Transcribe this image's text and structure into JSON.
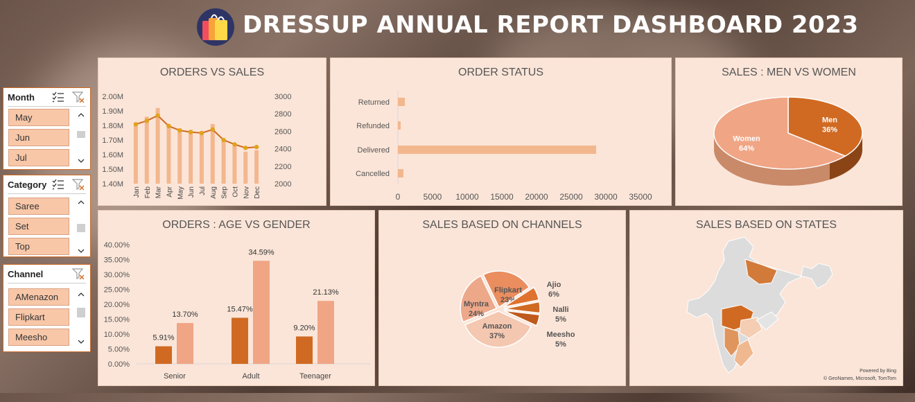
{
  "header": {
    "title": "DRESSUP ANNUAL REPORT DASHBOARD 2023"
  },
  "slicers": {
    "month": {
      "header": "Month",
      "items": [
        "May",
        "Jun",
        "Jul"
      ]
    },
    "category": {
      "header": "Category",
      "items": [
        "Saree",
        "Set",
        "Top"
      ]
    },
    "channel": {
      "header": "Channel",
      "items": [
        "AMenazon",
        "Flipkart",
        "Meesho"
      ]
    }
  },
  "colors": {
    "dark": "#d06a22",
    "light": "#f0a585",
    "bar": "#f3b78e",
    "panel": "#fbe5d8"
  },
  "chart_data": [
    {
      "id": "orders_vs_sales",
      "type": "bar",
      "title": "ORDERS VS SALES",
      "categories": [
        "Jan",
        "Feb",
        "Mar",
        "Apr",
        "May",
        "Jun",
        "Jul",
        "Aug",
        "Sep",
        "Oct",
        "Nov",
        "Dec"
      ],
      "y_left_ticks": [
        "1.40M",
        "1.50M",
        "1.60M",
        "1.70M",
        "1.80M",
        "1.90M",
        "2.00M"
      ],
      "y_right_ticks": [
        "2000",
        "2200",
        "2400",
        "2600",
        "2800",
        "3000"
      ],
      "series": [
        {
          "axis": "left",
          "type": "bar",
          "values": [
            1.82,
            1.86,
            1.92,
            1.81,
            1.78,
            1.77,
            1.76,
            1.81,
            1.7,
            1.66,
            1.62,
            1.63
          ]
        },
        {
          "axis": "right",
          "type": "line",
          "values": [
            2680,
            2720,
            2780,
            2660,
            2610,
            2590,
            2580,
            2620,
            2500,
            2450,
            2410,
            2420
          ]
        }
      ],
      "ylim_left": [
        1.4,
        2.0
      ],
      "ylim_right": [
        2000,
        3000
      ]
    },
    {
      "id": "order_status",
      "type": "bar",
      "title": "ORDER STATUS",
      "categories": [
        "Returned",
        "Refunded",
        "Delivered",
        "Cancelled"
      ],
      "values": [
        1000,
        400,
        28600,
        800
      ],
      "x_ticks": [
        "0",
        "5000",
        "10000",
        "15000",
        "20000",
        "25000",
        "30000",
        "35000"
      ],
      "xlim": [
        0,
        35000
      ]
    },
    {
      "id": "sales_gender",
      "type": "pie",
      "title": "SALES : MEN VS WOMEN",
      "labels": [
        "Men",
        "Women"
      ],
      "values": [
        36,
        64
      ],
      "display": [
        "36%",
        "64%"
      ]
    },
    {
      "id": "age_gender",
      "type": "bar",
      "title": "ORDERS : AGE VS GENDER",
      "categories": [
        "Senior",
        "Adult",
        "Teenager"
      ],
      "series": [
        {
          "values": [
            5.91,
            15.47,
            9.2
          ],
          "labels": [
            "5.91%",
            "15.47%",
            "9.20%"
          ]
        },
        {
          "values": [
            13.7,
            34.59,
            21.13
          ],
          "labels": [
            "13.70%",
            "34.59%",
            "21.13%"
          ]
        }
      ],
      "y_ticks": [
        "0.00%",
        "5.00%",
        "10.00%",
        "15.00%",
        "20.00%",
        "25.00%",
        "30.00%",
        "35.00%",
        "40.00%"
      ],
      "ylim": [
        0,
        40
      ]
    },
    {
      "id": "channels",
      "type": "pie",
      "title": "SALES BASED ON CHANNELS",
      "labels": [
        "Flipkart",
        "Ajio",
        "Nalli",
        "Meesho",
        "Amazon",
        "Myntra"
      ],
      "values": [
        23,
        6,
        5,
        5,
        37,
        24
      ],
      "display": [
        "23%",
        "6%",
        "5%",
        "5%",
        "37%",
        "24%"
      ]
    },
    {
      "id": "states",
      "type": "map",
      "title": "SALES BASED ON STATES",
      "credits": [
        "Powered by Bing",
        "© GeoNames, Microsoft, TomTom"
      ]
    }
  ]
}
